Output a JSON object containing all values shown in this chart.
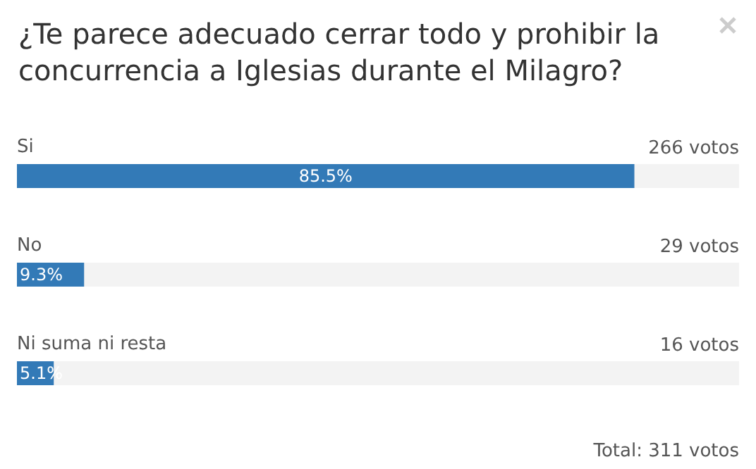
{
  "chart_data": {
    "type": "bar",
    "orientation": "horizontal",
    "title": "¿Te parece adecuado cerrar todo y prohibir la concurrencia a Iglesias durante el Milagro?",
    "categories": [
      "Si",
      "No",
      "Ni suma ni resta"
    ],
    "values": [
      85.5,
      9.3,
      5.1
    ],
    "value_labels": [
      "85.5%",
      "9.3%",
      "5.1%"
    ],
    "color": "#337ab7",
    "xlim": [
      0,
      100
    ],
    "tick_labels": false,
    "annotations": [
      "266 votos",
      "29 votos",
      "16 votos",
      "Total: 311 votos"
    ]
  }
}
